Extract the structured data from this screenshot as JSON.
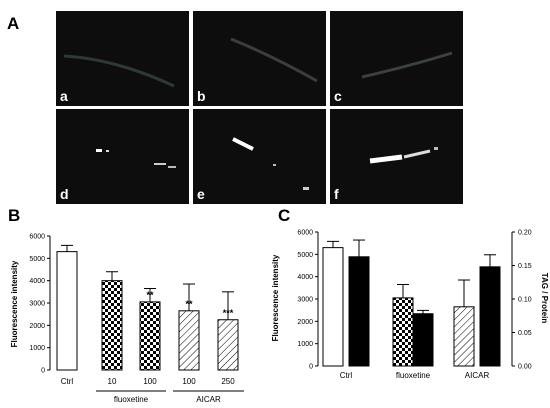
{
  "panel_a": {
    "letter": "A",
    "images": [
      {
        "label": "a"
      },
      {
        "label": "b"
      },
      {
        "label": "c"
      },
      {
        "label": "d"
      },
      {
        "label": "e"
      },
      {
        "label": "f"
      }
    ]
  },
  "panel_b": {
    "letter": "B"
  },
  "panel_c": {
    "letter": "C"
  },
  "colors": {
    "white_bar": "#ffffff",
    "black_bar": "#000000",
    "image_bg": "#0d0d0d"
  },
  "chart_data": [
    {
      "type": "bar",
      "panel": "B",
      "ylabel": "Fluorescence intensity",
      "ylim": [
        0,
        6000
      ],
      "yticks": [
        0,
        1000,
        2000,
        3000,
        4000,
        5000,
        6000
      ],
      "categories": [
        "Ctrl",
        "10",
        "100",
        "100",
        "250"
      ],
      "values": [
        5300,
        4000,
        3050,
        2650,
        2250
      ],
      "errors": [
        280,
        400,
        600,
        1200,
        1250
      ],
      "fills": [
        "white",
        "checker",
        "checker",
        "hatch",
        "hatch"
      ],
      "significance": [
        "",
        "",
        "**",
        "**",
        "***"
      ],
      "groups": [
        {
          "label": "fluoxetine",
          "from": 1,
          "to": 2
        },
        {
          "label": "AICAR",
          "from": 3,
          "to": 4
        }
      ],
      "grid": false
    },
    {
      "type": "bar",
      "panel": "C",
      "ylabel": "Fluorescence intensity",
      "y2label": "TAG / Protein",
      "ylim": [
        0,
        6000
      ],
      "yticks": [
        0,
        1000,
        2000,
        3000,
        4000,
        5000,
        6000
      ],
      "y2lim": [
        0,
        0.2
      ],
      "y2ticks": [
        "0.00",
        "0.05",
        "0.10",
        "0.15",
        "0.20"
      ],
      "groups": [
        "Ctrl",
        "fluoxetine",
        "AICAR"
      ],
      "fluorescence": {
        "values": [
          5300,
          3050,
          2650
        ],
        "errors": [
          280,
          600,
          1200
        ],
        "fills": [
          "white",
          "checker",
          "hatch"
        ]
      },
      "tag_protein": {
        "values": [
          0.163,
          0.078,
          0.148
        ],
        "errors": [
          0.025,
          0.005,
          0.018
        ],
        "fill": "black"
      },
      "grid": false
    }
  ]
}
